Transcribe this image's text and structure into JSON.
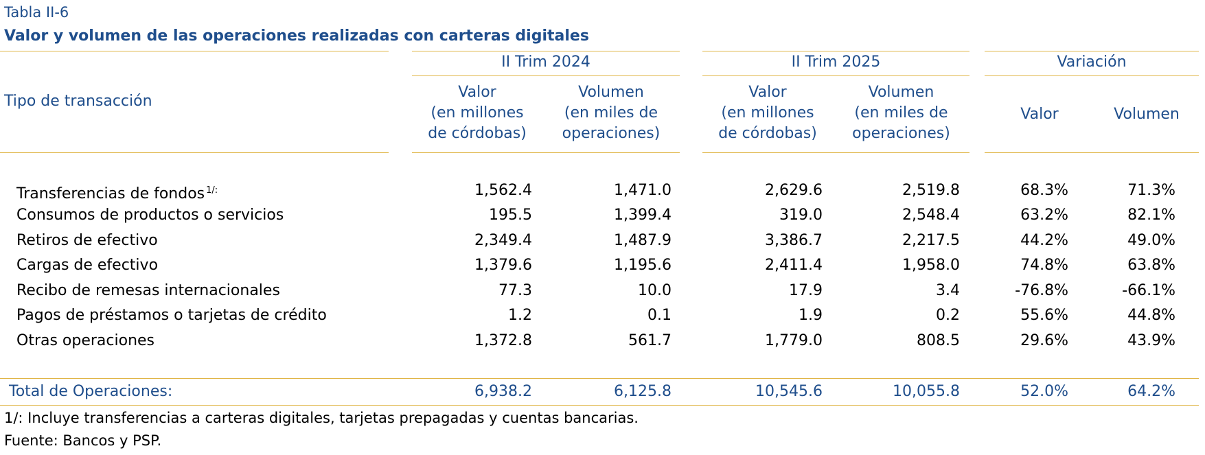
{
  "caption": {
    "label": "Tabla II-6",
    "title": "Valor y volumen de las operaciones realizadas con carteras digitales"
  },
  "header": {
    "type_label": "Tipo de transacción",
    "groups": [
      {
        "label": "II Trim 2024",
        "valor": [
          "Valor",
          "(en millones",
          "de córdobas)"
        ],
        "volumen": [
          "Volumen",
          "(en miles de",
          "operaciones)"
        ]
      },
      {
        "label": "II Trim 2025",
        "valor": [
          "Valor",
          "(en millones",
          "de córdobas)"
        ],
        "volumen": [
          "Volumen",
          "(en miles de",
          "operaciones)"
        ]
      },
      {
        "label": "Variación",
        "valor": [
          "Valor"
        ],
        "volumen": [
          "Volumen"
        ]
      }
    ]
  },
  "rows": [
    {
      "label": "Transferencias de fondos",
      "note": "1/:",
      "v2024": "1,562.4",
      "vol2024": "1,471.0",
      "v2025": "2,629.6",
      "vol2025": "2,519.8",
      "var_v": "68.3%",
      "var_vol": "71.3%"
    },
    {
      "label": "Consumos de productos o servicios",
      "note": "",
      "v2024": "195.5",
      "vol2024": "1,399.4",
      "v2025": "319.0",
      "vol2025": "2,548.4",
      "var_v": "63.2%",
      "var_vol": "82.1%"
    },
    {
      "label": "Retiros de efectivo",
      "note": "",
      "v2024": "2,349.4",
      "vol2024": "1,487.9",
      "v2025": "3,386.7",
      "vol2025": "2,217.5",
      "var_v": "44.2%",
      "var_vol": "49.0%"
    },
    {
      "label": "Cargas de efectivo",
      "note": "",
      "v2024": "1,379.6",
      "vol2024": "1,195.6",
      "v2025": "2,411.4",
      "vol2025": "1,958.0",
      "var_v": "74.8%",
      "var_vol": "63.8%"
    },
    {
      "label": "Recibo de remesas internacionales",
      "note": "",
      "v2024": "77.3",
      "vol2024": "10.0",
      "v2025": "17.9",
      "vol2025": "3.4",
      "var_v": "-76.8%",
      "var_vol": "-66.1%"
    },
    {
      "label": "Pagos de préstamos o tarjetas de crédito",
      "note": "",
      "v2024": "1.2",
      "vol2024": "0.1",
      "v2025": "1.9",
      "vol2025": "0.2",
      "var_v": "55.6%",
      "var_vol": "44.8%"
    },
    {
      "label": "Otras operaciones",
      "note": "",
      "v2024": "1,372.8",
      "vol2024": "561.7",
      "v2025": "1,779.0",
      "vol2025": "808.5",
      "var_v": "29.6%",
      "var_vol": "43.9%"
    }
  ],
  "total": {
    "label": "Total de Operaciones:",
    "v2024": "6,938.2",
    "vol2024": "6,125.8",
    "v2025": "10,545.6",
    "vol2025": "10,055.8",
    "var_v": "52.0%",
    "var_vol": "64.2%"
  },
  "footnotes": {
    "note1": "1/: Incluye transferencias a carteras digitales, tarjetas prepagadas y cuentas bancarias.",
    "source": "Fuente: Bancos y PSP."
  },
  "colors": {
    "text_blue": "#1f4e8c",
    "rule_gold": "#e0b546"
  }
}
